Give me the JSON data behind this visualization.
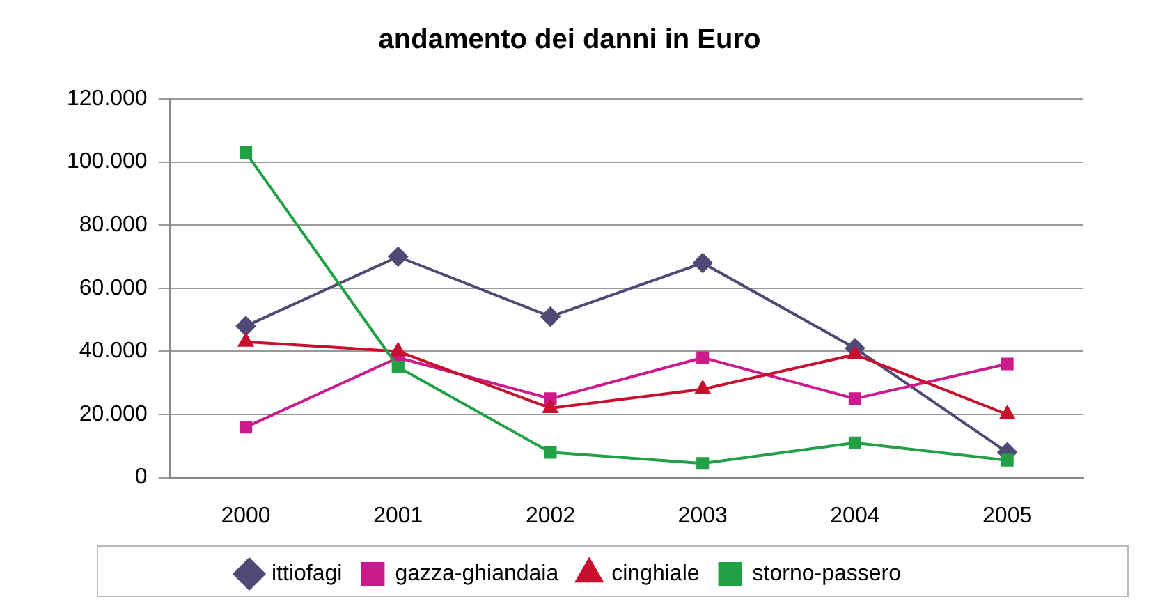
{
  "chart_data": {
    "type": "line",
    "title": "andamento dei danni in Euro",
    "categories": [
      "2000",
      "2001",
      "2002",
      "2003",
      "2004",
      "2005"
    ],
    "series": [
      {
        "name": "ittiofagi",
        "color": "#4f4a75",
        "marker": "diamond",
        "values": [
          48000,
          70000,
          51000,
          68000,
          41000,
          8000
        ]
      },
      {
        "name": "gazza-ghiandaia",
        "color": "#cc1a8c",
        "marker": "square",
        "values": [
          16000,
          38000,
          25000,
          38000,
          25000,
          36000
        ]
      },
      {
        "name": "cinghiale",
        "color": "#c8102e",
        "marker": "triangle",
        "values": [
          43000,
          40000,
          22000,
          28000,
          39000,
          20000
        ]
      },
      {
        "name": "storno-passero",
        "color": "#22a045",
        "marker": "square",
        "values": [
          103000,
          35000,
          8000,
          4500,
          11000,
          5500
        ]
      }
    ],
    "ylim": [
      0,
      120000
    ],
    "yticks": [
      {
        "value": 0,
        "label": "0"
      },
      {
        "value": 20000,
        "label": "20.000"
      },
      {
        "value": 40000,
        "label": "40.000"
      },
      {
        "value": 60000,
        "label": "60.000"
      },
      {
        "value": 80000,
        "label": "80.000"
      },
      {
        "value": 100000,
        "label": "100.000"
      },
      {
        "value": 120000,
        "label": "120.000"
      }
    ],
    "grid": "y",
    "legend": "bottom"
  }
}
